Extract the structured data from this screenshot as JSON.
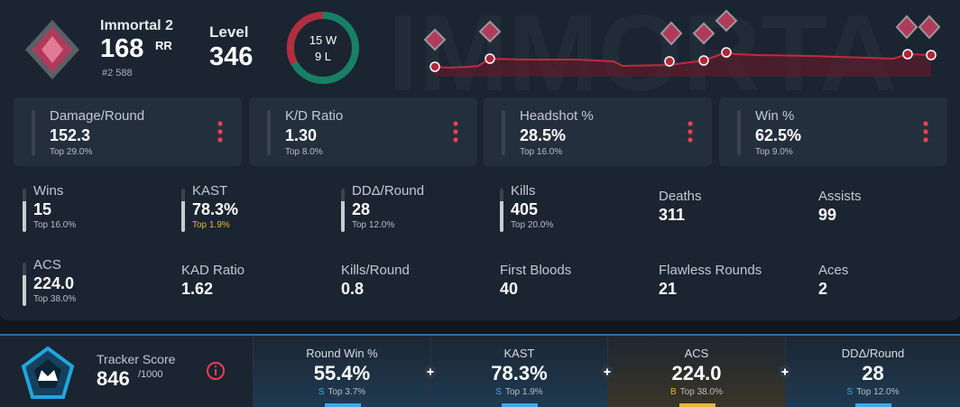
{
  "rank": {
    "name": "Immortal 2",
    "rr": "168",
    "rr_unit": "RR",
    "position": "#2 588"
  },
  "level": {
    "label": "Level",
    "value": "346"
  },
  "record": {
    "wins": "15 W",
    "losses": "9 L"
  },
  "stat_cards": [
    {
      "label": "Damage/Round",
      "value": "152.3",
      "rank": "Top 29.0%"
    },
    {
      "label": "K/D Ratio",
      "value": "1.30",
      "rank": "Top 8.0%"
    },
    {
      "label": "Headshot %",
      "value": "28.5%",
      "rank": "Top 16.0%"
    },
    {
      "label": "Win %",
      "value": "62.5%",
      "rank": "Top 9.0%"
    }
  ],
  "stats": [
    {
      "label": "Wins",
      "value": "15",
      "rank": "Top 16.0%"
    },
    {
      "label": "KAST",
      "value": "78.3%",
      "rank": "Top 1.9%"
    },
    {
      "label": "DDΔ/Round",
      "value": "28",
      "rank": "Top 12.0%"
    },
    {
      "label": "Kills",
      "value": "405",
      "rank": "Top 20.0%"
    },
    {
      "label": "Deaths",
      "value": "311"
    },
    {
      "label": "Assists",
      "value": "99"
    },
    {
      "label": "ACS",
      "value": "224.0",
      "rank": "Top 38.0%"
    },
    {
      "label": "KAD Ratio",
      "value": "1.62"
    },
    {
      "label": "Kills/Round",
      "value": "0.8"
    },
    {
      "label": "First Bloods",
      "value": "40"
    },
    {
      "label": "Flawless Rounds",
      "value": "21"
    },
    {
      "label": "Aces",
      "value": "2"
    }
  ],
  "tracker": {
    "label": "Tracker Score",
    "value": "846",
    "max": "/1000"
  },
  "summary": [
    {
      "label": "Round Win %",
      "value": "55.4%",
      "grade": "S",
      "rank": "Top 3.7%"
    },
    {
      "label": "KAST",
      "value": "78.3%",
      "grade": "S",
      "rank": "Top 1.9%"
    },
    {
      "label": "ACS",
      "value": "224.0",
      "grade": "B",
      "rank": "Top 38.0%"
    },
    {
      "label": "DDΔ/Round",
      "value": "28",
      "grade": "S",
      "rank": "Top 12.0%"
    }
  ]
}
